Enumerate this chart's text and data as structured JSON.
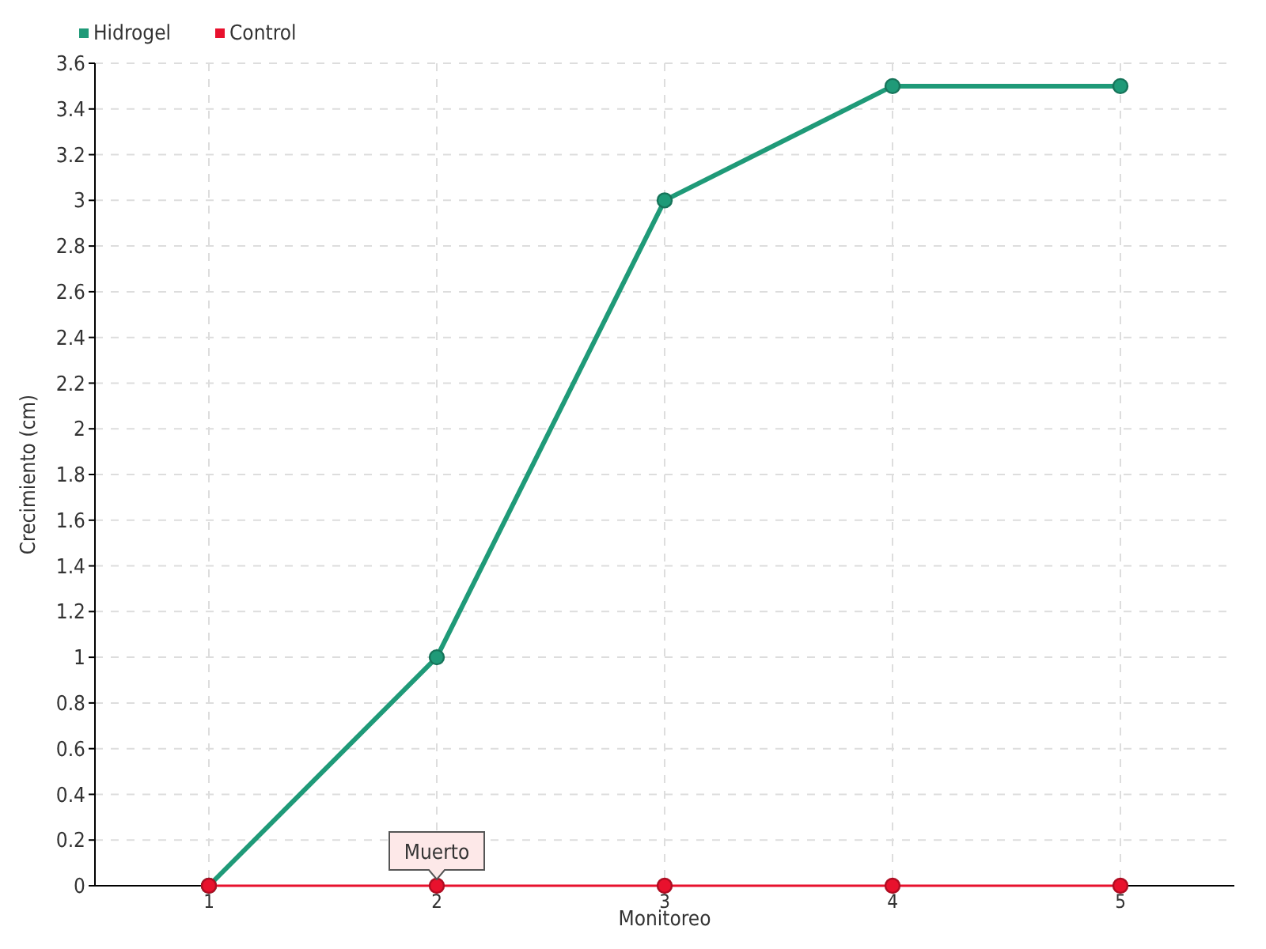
{
  "chart_data": {
    "type": "line",
    "xlabel": "Monitoreo",
    "ylabel": "Crecimiento (cm)",
    "categories": [
      "1",
      "2",
      "3",
      "4",
      "5"
    ],
    "series": [
      {
        "name": "Hidrogel",
        "color": "#1f9a78",
        "values": [
          0,
          1,
          3,
          3.5,
          3.5
        ]
      },
      {
        "name": "Control",
        "color": "#e8112d",
        "values": [
          0,
          0,
          0,
          0,
          0
        ]
      }
    ],
    "ylim": [
      0,
      3.6
    ],
    "yticks": [
      0,
      0.2,
      0.4,
      0.6,
      0.8,
      1,
      1.2,
      1.4,
      1.6,
      1.8,
      2,
      2.2,
      2.4,
      2.6,
      2.8,
      3,
      3.2,
      3.4,
      3.6
    ],
    "grid": true,
    "legend": "top left",
    "marker": "circle",
    "line_style": "solid",
    "annotations": [
      {
        "text": "Muerto",
        "x": "2",
        "y": 0
      }
    ]
  }
}
